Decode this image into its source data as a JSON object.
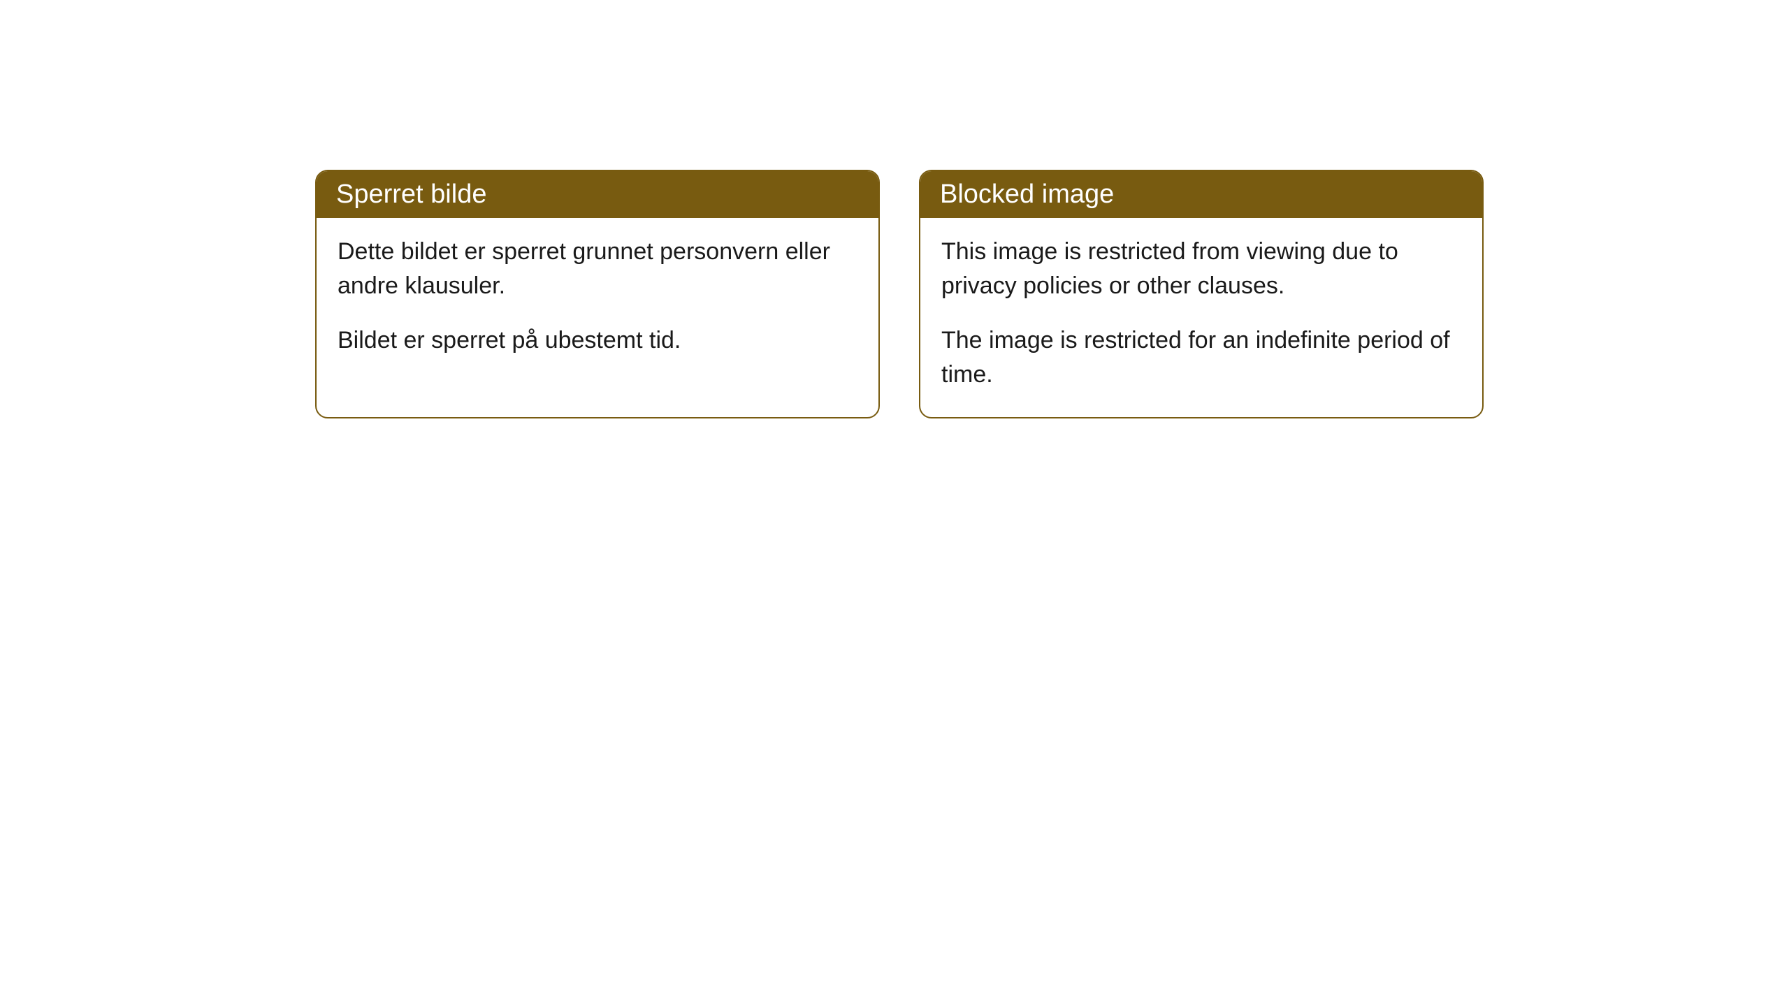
{
  "cards": [
    {
      "title": "Sperret bilde",
      "paragraph1": "Dette bildet er sperret grunnet personvern eller andre klausuler.",
      "paragraph2": "Bildet er sperret på ubestemt tid."
    },
    {
      "title": "Blocked image",
      "paragraph1": "This image is restricted from viewing due to privacy policies or other clauses.",
      "paragraph2": "The image is restricted for an indefinite period of time."
    }
  ],
  "style": {
    "header_bg_color": "#785b10",
    "header_text_color": "#ffffff",
    "border_color": "#785b10",
    "body_bg_color": "#ffffff",
    "body_text_color": "#1a1a1a",
    "border_radius": 18,
    "title_fontsize": 38,
    "body_fontsize": 34
  }
}
